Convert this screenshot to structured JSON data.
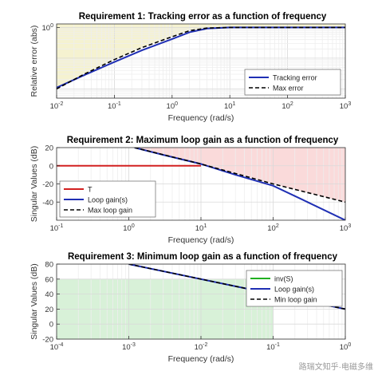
{
  "chart_data": [
    {
      "type": "line",
      "title": "Requirement 1: Tracking error as a function of frequency",
      "xlabel": "Frequency (rad/s)",
      "ylabel": "Relative error (abs)",
      "xscale": "log",
      "yscale": "log",
      "xlim": [
        0.01,
        1000
      ],
      "ylim": [
        0.005,
        1.3
      ],
      "x_ticks": [
        "10^-2",
        "10^-1",
        "10^0",
        "10^1",
        "10^2",
        "10^3"
      ],
      "y_ticks": [
        "10^0"
      ],
      "grid": true,
      "legend_position": "bottom-right",
      "shaded_region": {
        "color": "#f5f2d0",
        "description": "area above max error limit"
      },
      "series": [
        {
          "name": "Tracking error",
          "color": "#1f2fb4",
          "style": "solid",
          "x": [
            0.01,
            0.03,
            0.1,
            0.3,
            1,
            2,
            4,
            10,
            30,
            100,
            1000
          ],
          "y": [
            0.011,
            0.028,
            0.075,
            0.18,
            0.42,
            0.7,
            0.92,
            1.0,
            1.0,
            1.0,
            1.0
          ]
        },
        {
          "name": "Max error",
          "color": "#000000",
          "style": "dashed",
          "x": [
            0.01,
            0.03,
            0.1,
            0.3,
            1,
            2,
            4,
            10,
            30,
            100,
            1000
          ],
          "y": [
            0.01,
            0.03,
            0.09,
            0.22,
            0.5,
            0.78,
            0.95,
            1.0,
            1.0,
            1.0,
            1.0
          ]
        }
      ]
    },
    {
      "type": "line",
      "title": "Requirement 2: Maximum loop gain as a function of frequency",
      "xlabel": "Frequency (rad/s)",
      "ylabel": "Singular Values (dB)",
      "xscale": "log",
      "xlim": [
        0.1,
        1000
      ],
      "ylim": [
        -60,
        20
      ],
      "x_ticks": [
        "10^-1",
        "10^0",
        "10^1",
        "10^2",
        "10^3"
      ],
      "y_ticks": [
        "20",
        "0",
        "-20",
        "-40"
      ],
      "grid": true,
      "legend_position": "bottom-left",
      "shaded_region": {
        "color": "#fadada",
        "description": "area above max loop gain"
      },
      "series": [
        {
          "name": "T",
          "color": "#d22020",
          "style": "solid",
          "x": [
            0.1,
            1,
            3,
            5,
            10
          ],
          "y": [
            0,
            0,
            0,
            0,
            0
          ]
        },
        {
          "name": "Loop gain(s)",
          "color": "#1f2fb4",
          "style": "solid",
          "x": [
            1.2,
            3,
            10,
            30,
            100,
            300,
            1000
          ],
          "y": [
            20,
            12,
            2,
            -10,
            -22,
            -40,
            -60
          ]
        },
        {
          "name": "Max loop gain",
          "color": "#000000",
          "style": "dashed",
          "x": [
            1.2,
            10,
            100,
            1000
          ],
          "y": [
            20,
            2,
            -20,
            -40
          ]
        }
      ]
    },
    {
      "type": "line",
      "title": "Requirement 3: Minimum loop gain as a function of frequency",
      "xlabel": "Frequency (rad/s)",
      "ylabel": "Singular Values (dB)",
      "xscale": "log",
      "xlim": [
        0.0001,
        1
      ],
      "ylim": [
        -20,
        80
      ],
      "x_ticks": [
        "10^-4",
        "10^-3",
        "10^-2",
        "10^-1",
        "10^0"
      ],
      "y_ticks": [
        "80",
        "60",
        "40",
        "20",
        "0",
        "-20"
      ],
      "grid": true,
      "legend_position": "top-right",
      "shaded_region": {
        "color": "#d8f1d8",
        "description": "area below min loop gain"
      },
      "series": [
        {
          "name": "inv(S)",
          "color": "#20b020",
          "style": "solid",
          "x": [],
          "y": []
        },
        {
          "name": "Loop gain(s)",
          "color": "#1f2fb4",
          "style": "solid",
          "x": [
            0.001,
            0.01,
            0.1,
            1
          ],
          "y": [
            80,
            60,
            40,
            20
          ]
        },
        {
          "name": "Min loop gain",
          "color": "#000000",
          "style": "dashed",
          "x": [
            0.001,
            0.01,
            0.1,
            1
          ],
          "y": [
            80,
            60,
            40,
            20
          ]
        }
      ]
    }
  ],
  "watermark": "路瑞文知乎·电磁多维"
}
